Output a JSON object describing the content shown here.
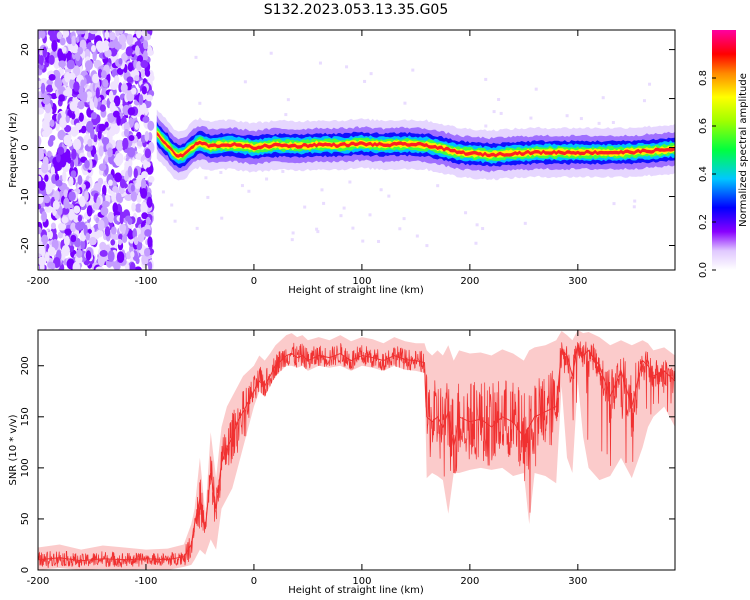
{
  "figure_title": "S132.2023.053.13.35.G05",
  "chart_data": [
    {
      "type": "heatmap",
      "title": "",
      "xlabel": "Height of straight line (km)",
      "ylabel": "Frequency (Hz)",
      "xlim": [
        -200,
        390
      ],
      "ylim": [
        -25,
        24
      ],
      "xticks": [
        -200,
        -100,
        0,
        100,
        200,
        300
      ],
      "yticks": [
        -20,
        -10,
        0,
        10,
        20
      ],
      "colorbar": {
        "label": "Normalized spectral amplitude",
        "range": [
          0,
          1
        ],
        "ticks": [
          0.0,
          0.2,
          0.4,
          0.6,
          0.8
        ]
      },
      "noise_region_x": [
        -200,
        -95
      ],
      "ridge_x": [
        -90,
        -85,
        -80,
        -75,
        -70,
        -65,
        -60,
        -55,
        -50,
        -40,
        -30,
        -20,
        -10,
        0,
        20,
        40,
        60,
        80,
        100,
        120,
        140,
        160,
        180,
        190,
        200,
        220,
        240,
        260,
        280,
        300,
        320,
        340,
        360,
        380,
        390
      ],
      "ridge_freq": [
        3.0,
        1.5,
        0.5,
        -1.0,
        -1.8,
        -1.5,
        -0.5,
        0.5,
        1.0,
        0.3,
        0.5,
        0.6,
        0.3,
        0.0,
        0.5,
        0.3,
        0.6,
        0.5,
        0.8,
        0.5,
        0.7,
        0.5,
        -0.5,
        -1.0,
        -1.2,
        -1.5,
        -1.2,
        -1.0,
        -1.0,
        -1.0,
        -1.0,
        -1.0,
        -0.8,
        -0.5,
        -0.3
      ]
    },
    {
      "type": "line",
      "title": "",
      "xlabel": "Height of straight line (km)",
      "ylabel": "SNR (10 * v/v)",
      "xlim": [
        -200,
        390
      ],
      "ylim": [
        0,
        235
      ],
      "xticks": [
        -200,
        -100,
        0,
        100,
        200,
        300
      ],
      "yticks": [
        0,
        50,
        100,
        150,
        200
      ],
      "color": "#f03030",
      "x": [
        -200,
        -180,
        -160,
        -140,
        -120,
        -100,
        -80,
        -65,
        -58,
        -55,
        -50,
        -45,
        -40,
        -35,
        -30,
        -25,
        -20,
        -15,
        -10,
        -5,
        0,
        5,
        10,
        15,
        20,
        25,
        30,
        35,
        40,
        45,
        50,
        60,
        70,
        80,
        90,
        100,
        110,
        120,
        130,
        140,
        150,
        158,
        160,
        165,
        170,
        175,
        180,
        185,
        190,
        200,
        210,
        220,
        230,
        240,
        250,
        255,
        260,
        270,
        280,
        285,
        290,
        295,
        300,
        305,
        310,
        320,
        330,
        340,
        350,
        360,
        365,
        370,
        380,
        390
      ],
      "y": [
        10,
        12,
        9,
        11,
        10,
        11,
        10,
        13,
        25,
        45,
        70,
        40,
        95,
        60,
        105,
        120,
        130,
        145,
        155,
        165,
        175,
        185,
        180,
        190,
        200,
        205,
        210,
        212,
        208,
        210,
        205,
        210,
        208,
        212,
        205,
        210,
        208,
        205,
        210,
        206,
        205,
        203,
        150,
        145,
        150,
        140,
        155,
        120,
        150,
        145,
        148,
        140,
        150,
        145,
        130,
        140,
        150,
        155,
        160,
        215,
        210,
        190,
        220,
        210,
        215,
        200,
        170,
        195,
        160,
        205,
        200,
        190,
        195,
        185
      ],
      "y_low": [
        0,
        2,
        0,
        1,
        0,
        1,
        0,
        3,
        5,
        10,
        20,
        15,
        30,
        20,
        60,
        70,
        80,
        100,
        120,
        140,
        160,
        175,
        170,
        180,
        190,
        195,
        200,
        200,
        198,
        200,
        195,
        200,
        198,
        200,
        195,
        200,
        198,
        195,
        200,
        196,
        195,
        193,
        90,
        95,
        92,
        88,
        55,
        95,
        95,
        98,
        100,
        98,
        100,
        92,
        95,
        45,
        95,
        92,
        85,
        180,
        110,
        95,
        185,
        130,
        100,
        88,
        92,
        110,
        90,
        120,
        140,
        150,
        160,
        140
      ],
      "y_high": [
        22,
        25,
        20,
        24,
        22,
        20,
        21,
        25,
        45,
        60,
        110,
        55,
        135,
        90,
        140,
        160,
        170,
        180,
        190,
        195,
        200,
        210,
        205,
        212,
        220,
        225,
        230,
        232,
        228,
        230,
        225,
        228,
        225,
        230,
        224,
        228,
        226,
        222,
        228,
        224,
        222,
        222,
        215,
        210,
        215,
        210,
        220,
        205,
        215,
        212,
        213,
        210,
        216,
        212,
        205,
        215,
        218,
        220,
        225,
        234,
        230,
        225,
        235,
        232,
        233,
        228,
        220,
        225,
        220,
        225,
        222,
        215,
        218,
        210
      ]
    }
  ]
}
